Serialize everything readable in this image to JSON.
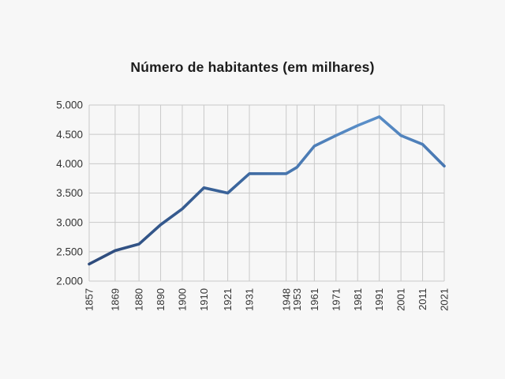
{
  "chart_data": {
    "type": "line",
    "title": "Número de habitantes (em milhares)",
    "xlabel": "",
    "ylabel": "",
    "x": [
      1857,
      1869,
      1880,
      1890,
      1900,
      1910,
      1921,
      1931,
      1948,
      1953,
      1961,
      1971,
      1981,
      1991,
      2001,
      2011,
      2021
    ],
    "xtick_labels": [
      "1857",
      "1869",
      "1880",
      "1890",
      "1900",
      "1910",
      "1921",
      "1931",
      "1948",
      "1953",
      "1961",
      "1971",
      "1981",
      "1991",
      "2001",
      "2011",
      "2021"
    ],
    "series": [
      {
        "name": "Número de habitantes (em milhares)",
        "values": [
          2290,
          2520,
          2630,
          2960,
          3230,
          3590,
          3500,
          3830,
          3830,
          3940,
          4300,
          4480,
          4650,
          4800,
          4480,
          4330,
          3960
        ]
      }
    ],
    "ylim": [
      2000,
      5000
    ],
    "yticks": [
      {
        "value": 2000,
        "label": "2.000"
      },
      {
        "value": 2500,
        "label": "2.500"
      },
      {
        "value": 3000,
        "label": "3.000"
      },
      {
        "value": 3500,
        "label": "3.500"
      },
      {
        "value": 4000,
        "label": "4.000"
      },
      {
        "value": 4500,
        "label": "4.500"
      },
      {
        "value": 5000,
        "label": "5.000"
      }
    ],
    "grid": true,
    "legend": false,
    "colors": {
      "background": "#f7f7f7",
      "gridline": "#c9c9c9",
      "tick_text": "#333333",
      "title_text": "#1c1c1c",
      "line_gradient": [
        {
          "offset": "0%",
          "color": "#2e4b7c"
        },
        {
          "offset": "40%",
          "color": "#3a649b"
        },
        {
          "offset": "78%",
          "color": "#5a8fc9"
        },
        {
          "offset": "100%",
          "color": "#4877b1"
        }
      ]
    }
  }
}
